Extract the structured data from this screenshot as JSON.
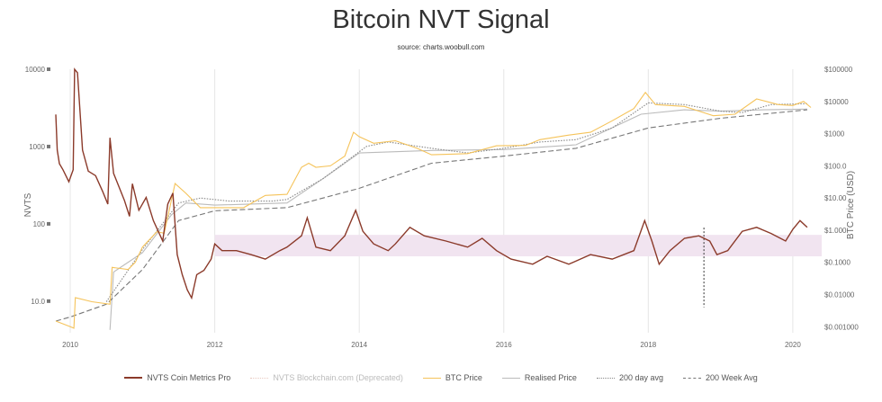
{
  "chart_data": {
    "type": "line",
    "title": "Bitcoin NVT Signal",
    "subtitle": "source: charts.woobull.com",
    "x_ticks": [
      "2010",
      "2012",
      "2014",
      "2016",
      "2018",
      "2020"
    ],
    "xlim": [
      2009.8,
      2020.4
    ],
    "y_left": {
      "label": "NVTS",
      "scale": "log",
      "range": [
        3.9,
        10000
      ],
      "ticks": [
        "10000",
        "1000",
        "100",
        "10.0"
      ],
      "tick_values": [
        10000,
        1000,
        100,
        10
      ]
    },
    "y_right": {
      "label": "BTC Price (USD)",
      "scale": "log",
      "range": [
        0.00065,
        100000
      ],
      "ticks": [
        "$100000",
        "$10000",
        "$1000",
        "$100.0",
        "$10.00",
        "$1.000",
        "$0.1000",
        "$0.01000",
        "$0.001000"
      ],
      "tick_values": [
        100000,
        10000,
        1000,
        100,
        10,
        1,
        0.1,
        0.01,
        0.001
      ]
    },
    "band": {
      "axis": "left",
      "range": [
        38,
        72
      ],
      "from": 2012,
      "color": "#f1e4f0"
    },
    "vline": {
      "x": 2018.77,
      "from_value": 1.2,
      "to_value": 0.004,
      "axis": "right"
    },
    "grid": "vertical",
    "legend_position": "bottom",
    "series": [
      {
        "name": "NVTS Coin Metrics Pro",
        "axis": "left",
        "color": "#8b3a2a",
        "style": "solid",
        "points": [
          [
            2009.8,
            2600
          ],
          [
            2009.82,
            900
          ],
          [
            2009.85,
            600
          ],
          [
            2009.9,
            500
          ],
          [
            2009.98,
            350
          ],
          [
            2010.04,
            500
          ],
          [
            2010.06,
            10000
          ],
          [
            2010.1,
            9000
          ],
          [
            2010.17,
            900
          ],
          [
            2010.25,
            480
          ],
          [
            2010.35,
            420
          ],
          [
            2010.45,
            260
          ],
          [
            2010.52,
            180
          ],
          [
            2010.55,
            1300
          ],
          [
            2010.6,
            450
          ],
          [
            2010.75,
            200
          ],
          [
            2010.82,
            125
          ],
          [
            2010.86,
            330
          ],
          [
            2010.95,
            150
          ],
          [
            2011.05,
            220
          ],
          [
            2011.15,
            110
          ],
          [
            2011.28,
            60
          ],
          [
            2011.35,
            180
          ],
          [
            2011.42,
            250
          ],
          [
            2011.48,
            40
          ],
          [
            2011.55,
            22
          ],
          [
            2011.62,
            14
          ],
          [
            2011.68,
            11
          ],
          [
            2011.75,
            22
          ],
          [
            2011.85,
            25
          ],
          [
            2011.95,
            35
          ],
          [
            2012.0,
            55
          ],
          [
            2012.1,
            45
          ],
          [
            2012.3,
            45
          ],
          [
            2012.5,
            40
          ],
          [
            2012.7,
            35
          ],
          [
            2012.9,
            45
          ],
          [
            2013.0,
            50
          ],
          [
            2013.2,
            70
          ],
          [
            2013.28,
            120
          ],
          [
            2013.4,
            50
          ],
          [
            2013.6,
            45
          ],
          [
            2013.8,
            70
          ],
          [
            2013.95,
            150
          ],
          [
            2014.05,
            80
          ],
          [
            2014.2,
            55
          ],
          [
            2014.4,
            45
          ],
          [
            2014.5,
            55
          ],
          [
            2014.7,
            90
          ],
          [
            2014.9,
            70
          ],
          [
            2015.2,
            60
          ],
          [
            2015.5,
            50
          ],
          [
            2015.7,
            65
          ],
          [
            2015.9,
            45
          ],
          [
            2016.1,
            35
          ],
          [
            2016.4,
            30
          ],
          [
            2016.6,
            38
          ],
          [
            2016.9,
            30
          ],
          [
            2017.2,
            40
          ],
          [
            2017.5,
            35
          ],
          [
            2017.8,
            45
          ],
          [
            2017.95,
            110
          ],
          [
            2018.05,
            60
          ],
          [
            2018.15,
            30
          ],
          [
            2018.3,
            45
          ],
          [
            2018.5,
            65
          ],
          [
            2018.7,
            70
          ],
          [
            2018.85,
            60
          ],
          [
            2018.95,
            40
          ],
          [
            2019.1,
            45
          ],
          [
            2019.3,
            80
          ],
          [
            2019.5,
            90
          ],
          [
            2019.7,
            75
          ],
          [
            2019.9,
            60
          ],
          [
            2020.0,
            85
          ],
          [
            2020.1,
            110
          ],
          [
            2020.2,
            90
          ]
        ]
      },
      {
        "name": "NVTS Blockchain.com (Deprecated)",
        "axis": "left",
        "color": "#e8c8c0",
        "style": "dotted",
        "points": []
      },
      {
        "name": "BTC Price",
        "axis": "right",
        "color": "#f5c35a",
        "style": "solid",
        "points": [
          [
            2009.8,
            0.0015
          ],
          [
            2010.0,
            0.001
          ],
          [
            2010.05,
            0.0009
          ],
          [
            2010.07,
            0.008
          ],
          [
            2010.3,
            0.006
          ],
          [
            2010.55,
            0.005
          ],
          [
            2010.58,
            0.07
          ],
          [
            2010.8,
            0.06
          ],
          [
            2010.9,
            0.1
          ],
          [
            2011.0,
            0.3
          ],
          [
            2011.2,
            0.9
          ],
          [
            2011.3,
            0.8
          ],
          [
            2011.45,
            28
          ],
          [
            2011.6,
            14
          ],
          [
            2011.8,
            5
          ],
          [
            2012.0,
            5
          ],
          [
            2012.4,
            5
          ],
          [
            2012.7,
            12
          ],
          [
            2013.0,
            13
          ],
          [
            2013.2,
            90
          ],
          [
            2013.3,
            120
          ],
          [
            2013.4,
            90
          ],
          [
            2013.6,
            100
          ],
          [
            2013.8,
            200
          ],
          [
            2013.92,
            1100
          ],
          [
            2014.0,
            800
          ],
          [
            2014.2,
            500
          ],
          [
            2014.5,
            600
          ],
          [
            2014.8,
            350
          ],
          [
            2015.0,
            220
          ],
          [
            2015.5,
            240
          ],
          [
            2015.9,
            420
          ],
          [
            2016.3,
            430
          ],
          [
            2016.5,
            650
          ],
          [
            2016.9,
            900
          ],
          [
            2017.2,
            1100
          ],
          [
            2017.5,
            2500
          ],
          [
            2017.8,
            6000
          ],
          [
            2017.96,
            19000
          ],
          [
            2018.1,
            8000
          ],
          [
            2018.5,
            7000
          ],
          [
            2018.9,
            3600
          ],
          [
            2019.2,
            4000
          ],
          [
            2019.5,
            12000
          ],
          [
            2019.8,
            8000
          ],
          [
            2020.0,
            7500
          ],
          [
            2020.15,
            10000
          ],
          [
            2020.25,
            6500
          ]
        ]
      },
      {
        "name": "Realised Price",
        "axis": "right",
        "color": "#bbbbbb",
        "style": "solid",
        "points": [
          [
            2010.55,
            0.0008
          ],
          [
            2010.6,
            0.05
          ],
          [
            2011.0,
            0.2
          ],
          [
            2011.4,
            3
          ],
          [
            2011.6,
            7
          ],
          [
            2012.0,
            6
          ],
          [
            2013.0,
            7
          ],
          [
            2013.5,
            40
          ],
          [
            2014.0,
            250
          ],
          [
            2015.0,
            300
          ],
          [
            2016.0,
            320
          ],
          [
            2017.0,
            450
          ],
          [
            2017.9,
            4000
          ],
          [
            2018.5,
            5500
          ],
          [
            2019.0,
            5000
          ],
          [
            2019.6,
            5500
          ],
          [
            2020.2,
            5800
          ]
        ]
      },
      {
        "name": "200 day avg",
        "axis": "right",
        "color": "#888888",
        "style": "dotted",
        "points": [
          [
            2010.5,
            0.006
          ],
          [
            2011.0,
            0.25
          ],
          [
            2011.5,
            7
          ],
          [
            2011.8,
            10
          ],
          [
            2012.2,
            8
          ],
          [
            2012.8,
            8
          ],
          [
            2013.0,
            9
          ],
          [
            2013.5,
            40
          ],
          [
            2014.1,
            400
          ],
          [
            2014.4,
            550
          ],
          [
            2015.0,
            350
          ],
          [
            2015.5,
            250
          ],
          [
            2016.0,
            350
          ],
          [
            2016.5,
            550
          ],
          [
            2017.0,
            650
          ],
          [
            2017.5,
            1500
          ],
          [
            2018.0,
            9000
          ],
          [
            2018.5,
            8000
          ],
          [
            2019.0,
            5000
          ],
          [
            2019.3,
            4500
          ],
          [
            2019.7,
            8000
          ],
          [
            2020.2,
            8500
          ]
        ]
      },
      {
        "name": "200 Week Avg",
        "axis": "right",
        "color": "#777777",
        "style": "dashed",
        "points": [
          [
            2009.8,
            0.0015
          ],
          [
            2010.0,
            0.002
          ],
          [
            2010.5,
            0.005
          ],
          [
            2011.0,
            0.06
          ],
          [
            2011.5,
            2
          ],
          [
            2012.0,
            4
          ],
          [
            2013.0,
            5
          ],
          [
            2014.0,
            20
          ],
          [
            2015.0,
            120
          ],
          [
            2016.0,
            200
          ],
          [
            2017.0,
            350
          ],
          [
            2018.0,
            1500
          ],
          [
            2019.0,
            3000
          ],
          [
            2020.2,
            5500
          ]
        ]
      }
    ]
  }
}
